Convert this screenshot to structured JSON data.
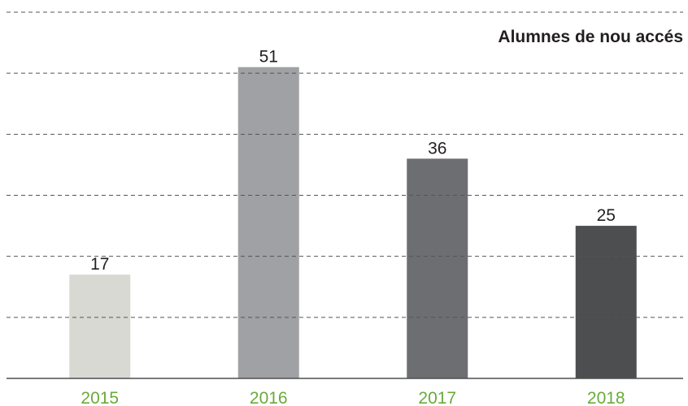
{
  "chart_data": {
    "type": "bar",
    "title": "Alumnes de nou accés",
    "categories": [
      "2015",
      "2016",
      "2017",
      "2018"
    ],
    "values": [
      17,
      51,
      36,
      25
    ],
    "colors": [
      "#d9d9d4",
      "#a0a1a4",
      "#6d6e71",
      "#4d4e50"
    ],
    "ylim": [
      0,
      60
    ],
    "yticks": [
      0,
      10,
      20,
      30,
      40,
      50,
      60
    ],
    "grid": true
  }
}
